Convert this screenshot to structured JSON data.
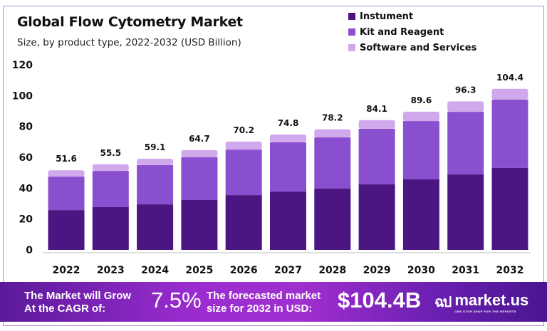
{
  "chart_data": {
    "type": "bar",
    "stacked": true,
    "title": "Global Flow Cytometry Market",
    "subtitle": "Size, by product type, 2022-2032 (USD Billion)",
    "categories": [
      "2022",
      "2023",
      "2024",
      "2025",
      "2026",
      "2027",
      "2028",
      "2029",
      "2030",
      "2031",
      "2032"
    ],
    "series": [
      {
        "name": "Instument",
        "color": "#4b1682",
        "values": [
          25.8,
          27.7,
          29.5,
          32.3,
          35.5,
          37.8,
          39.7,
          42.5,
          45.7,
          48.9,
          53.1
        ]
      },
      {
        "name": "Kit and Reagent",
        "color": "#8a4fcf",
        "values": [
          21.7,
          23.5,
          25.4,
          27.7,
          29.5,
          31.9,
          33.2,
          36.0,
          37.8,
          40.6,
          44.3
        ]
      },
      {
        "name": "Software and Services",
        "color": "#d0a8ec",
        "values": [
          4.1,
          4.3,
          4.2,
          4.7,
          5.2,
          5.1,
          5.3,
          5.6,
          6.1,
          6.8,
          7.0
        ]
      }
    ],
    "totals": [
      "51.6",
      "55.5",
      "59.1",
      "64.7",
      "70.2",
      "74.8",
      "78.2",
      "84.1",
      "89.6",
      "96.3",
      "104.4"
    ],
    "yticks": [
      "0",
      "20",
      "40",
      "60",
      "80",
      "100",
      "120"
    ],
    "ylim": [
      0,
      120
    ],
    "grid": false,
    "legend": "top-right"
  },
  "banner": {
    "cagr_text_line1": "The Market will Grow",
    "cagr_text_line2": "At the CAGR of:",
    "cagr_value": "7.5%",
    "size_text_line1": "The forecasted market",
    "size_text_line2": "size for 2032 in USD:",
    "size_value": "$104.4B",
    "logo_text": "market.us",
    "logo_tagline": "ONE STOP SHOP FOR THE REPORTS"
  }
}
